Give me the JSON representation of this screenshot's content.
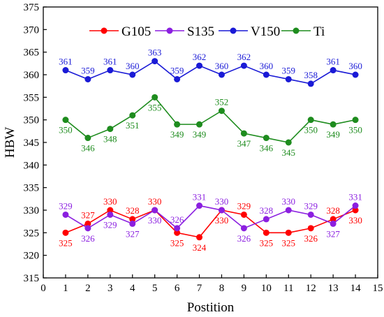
{
  "chart_data": {
    "type": "line",
    "xlabel": "Postition",
    "ylabel": "HBW",
    "xlim": [
      0,
      15
    ],
    "ylim": [
      315,
      375
    ],
    "x_ticks": [
      0,
      1,
      2,
      3,
      4,
      5,
      6,
      7,
      8,
      9,
      10,
      11,
      12,
      13,
      14,
      15
    ],
    "y_ticks": [
      315,
      320,
      325,
      330,
      335,
      340,
      345,
      350,
      355,
      360,
      365,
      370,
      375
    ],
    "grid": false,
    "legend_position": "top",
    "x": [
      1,
      2,
      3,
      4,
      5,
      6,
      7,
      8,
      9,
      10,
      11,
      12,
      13,
      14
    ],
    "series": [
      {
        "name": "G105",
        "color": "#ff0000",
        "values": [
          325,
          327,
          330,
          328,
          330,
          325,
          324,
          330,
          329,
          325,
          325,
          326,
          328,
          330
        ]
      },
      {
        "name": "S135",
        "color": "#8b1fe0",
        "values": [
          329,
          326,
          329,
          327,
          330,
          326,
          331,
          330,
          326,
          328,
          330,
          329,
          327,
          331
        ]
      },
      {
        "name": "V150",
        "color": "#1a1ad6",
        "values": [
          361,
          359,
          361,
          360,
          363,
          359,
          362,
          360,
          362,
          360,
          359,
          358,
          361,
          360
        ]
      },
      {
        "name": "Ti",
        "color": "#1e8c1e",
        "values": [
          350,
          346,
          348,
          351,
          355,
          349,
          349,
          352,
          347,
          346,
          345,
          350,
          349,
          350
        ]
      }
    ]
  }
}
